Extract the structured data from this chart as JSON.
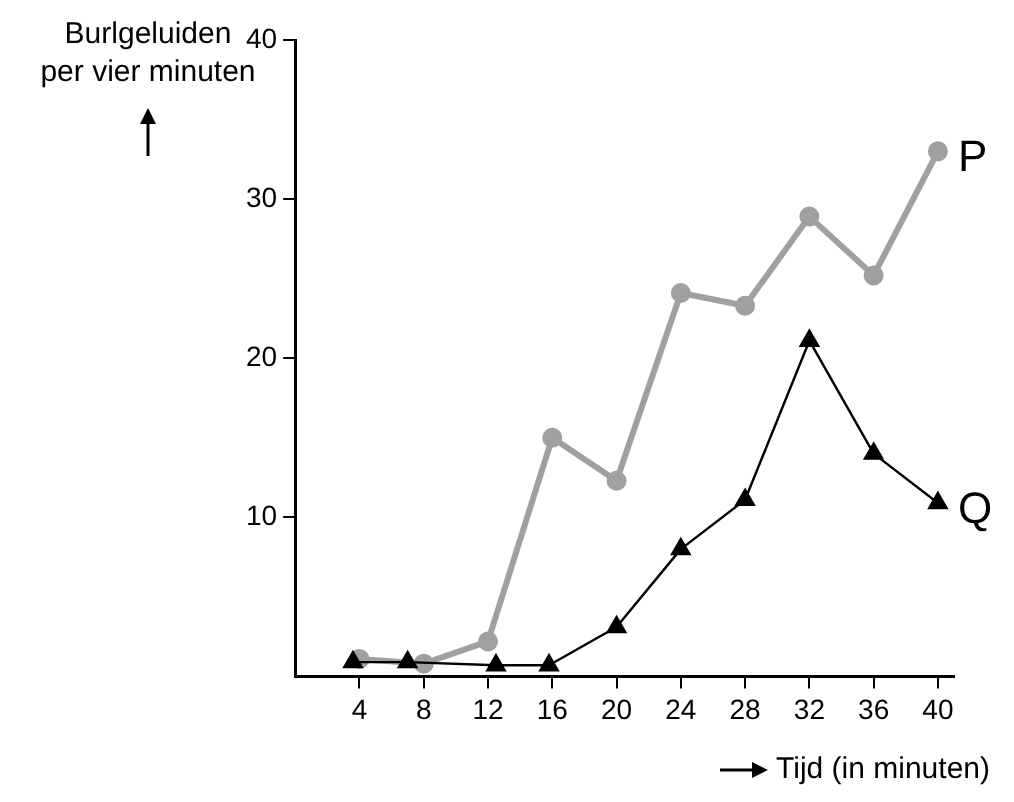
{
  "chart_data": {
    "type": "line",
    "ylabel": "Burlgeluiden\nper vier minuten",
    "xlabel": "Tijd (in minuten)",
    "xlim": [
      0,
      41
    ],
    "xticks": [
      4,
      8,
      12,
      16,
      20,
      24,
      28,
      32,
      36,
      40
    ],
    "ylim": [
      0,
      40
    ],
    "yticks": [
      10,
      20,
      30,
      40
    ],
    "grid": false,
    "legend": false,
    "series": [
      {
        "name": "P",
        "color": "#a0a0a0",
        "marker": "circle",
        "x": [
          4,
          8,
          12,
          16,
          20,
          24,
          28,
          32,
          36,
          40
        ],
        "values": [
          1.1,
          0.8,
          2.2,
          15,
          12.3,
          24.1,
          23.3,
          28.9,
          25.2,
          33
        ]
      },
      {
        "name": "Q",
        "color": "#000000",
        "marker": "triangle",
        "x": [
          3.6,
          7,
          12.5,
          15.8,
          20,
          24,
          28,
          32,
          36,
          40
        ],
        "values": [
          0.9,
          0.9,
          0.7,
          0.7,
          3.1,
          8,
          11.1,
          21.1,
          14,
          10.9
        ]
      }
    ]
  }
}
